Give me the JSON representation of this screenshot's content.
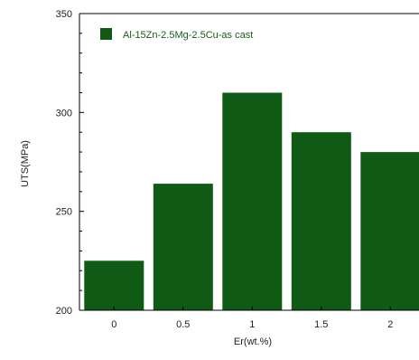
{
  "chart_data": {
    "type": "bar",
    "categories": [
      "0",
      "0.5",
      "1",
      "1.5",
      "2"
    ],
    "series": [
      {
        "name": "Al-15Zn-2.5Mg-2.5Cu-as cast",
        "values": [
          225,
          264,
          310,
          290,
          280
        ]
      }
    ],
    "xlabel": "Er(wt.%)",
    "ylabel": "UTS(MPa)",
    "ylim": [
      200,
      350
    ],
    "yticks": [
      "200",
      "250",
      "300",
      "350"
    ],
    "legend_position": "top-left",
    "grid": false,
    "colors": {
      "bar": "#0f5a14",
      "legend_text": "#1a5c1a",
      "axis": "#000000"
    }
  }
}
